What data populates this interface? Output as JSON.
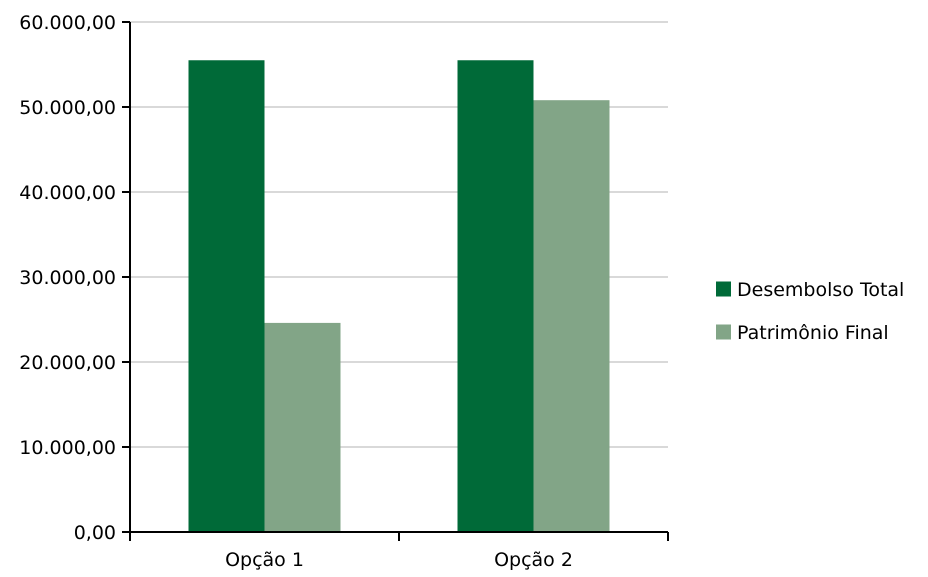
{
  "chart_data": {
    "type": "bar",
    "categories": [
      "Opção 1",
      "Opção 2"
    ],
    "series": [
      {
        "name": "Desembolso Total",
        "values": [
          55500,
          55500
        ],
        "color": "#006a38"
      },
      {
        "name": "Patrimônio Final",
        "values": [
          24600,
          50800
        ],
        "color": "#82a587"
      }
    ],
    "y_ticks": [
      "0,00",
      "10.000,00",
      "20.000,00",
      "30.000,00",
      "40.000,00",
      "50.000,00",
      "60.000,00"
    ],
    "ylim": [
      0,
      60000
    ],
    "grid": true,
    "legend_position": "right"
  }
}
